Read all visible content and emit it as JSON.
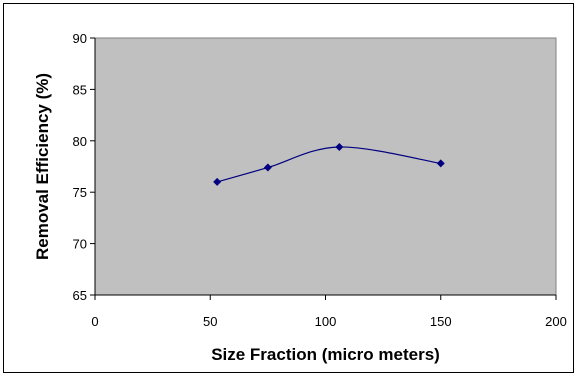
{
  "chart_data": {
    "type": "line",
    "title": "",
    "xlabel": "Size Fraction (micro meters)",
    "ylabel": "Removal Efficiency (%)",
    "xlim": [
      0,
      200
    ],
    "ylim": [
      65,
      90
    ],
    "xticks": [
      0,
      50,
      100,
      150,
      200
    ],
    "yticks": [
      65,
      70,
      75,
      80,
      85,
      90
    ],
    "grid": false,
    "legend": "none",
    "smooth": true,
    "series": [
      {
        "x": [
          53,
          75,
          106,
          150
        ],
        "y": [
          76.0,
          77.4,
          79.4,
          77.8
        ]
      }
    ],
    "colors": {
      "plot_background": "#c0c0c0",
      "line": "#000080",
      "marker": "#000080"
    }
  }
}
